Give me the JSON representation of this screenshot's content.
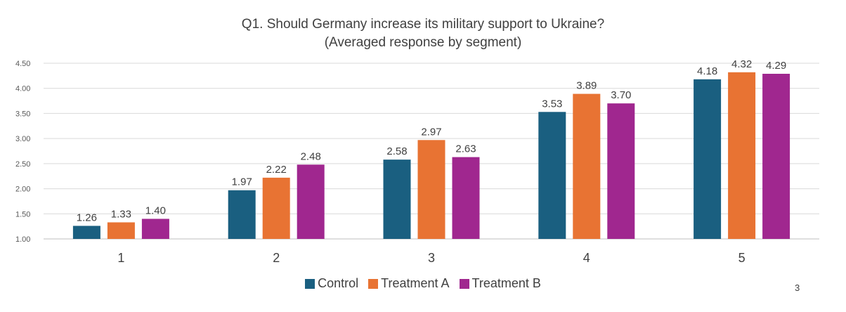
{
  "chart_data": {
    "type": "bar",
    "title": "Q1. Should Germany increase its military support to Ukraine?",
    "subtitle": "(Averaged response by segment)",
    "xlabel": "",
    "ylabel": "",
    "ylim": [
      1.0,
      4.5
    ],
    "yticks": [
      1.0,
      1.5,
      2.0,
      2.5,
      3.0,
      3.5,
      4.0,
      4.5
    ],
    "ytick_labels": [
      "1.00",
      "1.50",
      "2.00",
      "2.50",
      "3.00",
      "3.50",
      "4.00",
      "4.50"
    ],
    "grid": true,
    "legend_position": "bottom",
    "categories": [
      "1",
      "2",
      "3",
      "4",
      "5"
    ],
    "series": [
      {
        "name": "Control",
        "color": "#1a5f80",
        "values": [
          1.26,
          1.97,
          2.58,
          3.53,
          4.18
        ]
      },
      {
        "name": "Treatment A",
        "color": "#e87333",
        "values": [
          1.33,
          2.22,
          2.97,
          3.89,
          4.32
        ]
      },
      {
        "name": "Treatment B",
        "color": "#a0278f",
        "values": [
          1.4,
          2.48,
          2.63,
          3.7,
          4.29
        ]
      }
    ]
  },
  "page_number": "3"
}
